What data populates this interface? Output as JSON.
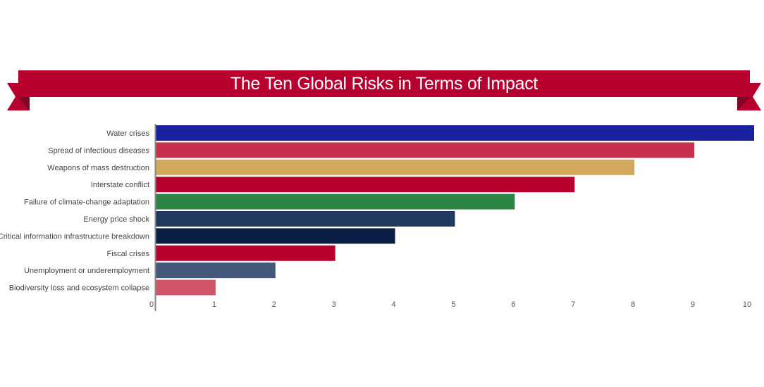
{
  "chart_data": {
    "type": "bar",
    "orientation": "horizontal",
    "title": "The Ten Global Risks in Terms of Impact",
    "categories": [
      "Water crises",
      "Spread of infectious diseases",
      "Weapons of mass destruction",
      "Interstate conflict",
      "Failure of climate-change adaptation",
      "Energy price shock",
      "Critical information infrastructure breakdown",
      "Fiscal crises",
      "Unemployment or underemployment",
      "Biodiversity loss and ecosystem collapse"
    ],
    "values": [
      10,
      9,
      8,
      7,
      6,
      5,
      4,
      3,
      2,
      1
    ],
    "colors": [
      "#1a22a0",
      "#c8314d",
      "#d4a85a",
      "#b8002f",
      "#2e8444",
      "#203a5e",
      "#0b1e44",
      "#b8002f",
      "#44597a",
      "#d05569"
    ],
    "xlim": [
      0,
      10
    ],
    "xticks": [
      "0",
      "1",
      "2",
      "3",
      "4",
      "5",
      "6",
      "7",
      "8",
      "9",
      "10"
    ],
    "grid": false,
    "legend": "none",
    "banner_color": "#b8002f",
    "banner_fold_color": "#8a0a26"
  }
}
